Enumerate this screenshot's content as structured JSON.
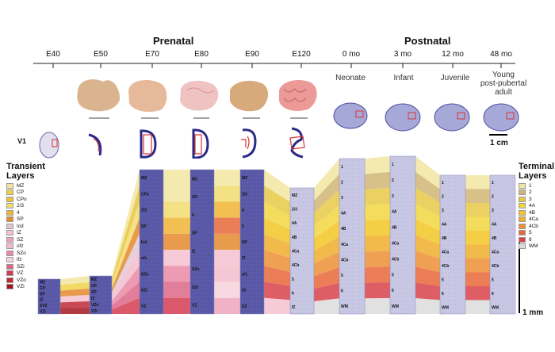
{
  "headers": {
    "prenatal": "Prenatal",
    "postnatal": "Postnatal"
  },
  "timepoints": [
    "E40",
    "E50",
    "E70",
    "E80",
    "E90",
    "E120",
    "0 mo",
    "3 mo",
    "12 mo",
    "48 mo"
  ],
  "stages": {
    "neonate": "Neonate",
    "infant": "Infant",
    "juvenile": "Juvenile",
    "adult": "Young\npost-pubertal\nadult"
  },
  "v1_label": "V1",
  "scale_cm": "1 cm",
  "scale_mm": "1 mm",
  "transient": {
    "title": "Transient\nLayers",
    "items": [
      {
        "label": "MZ",
        "color": "#f2e6a1"
      },
      {
        "label": "CP",
        "color": "#eed24a"
      },
      {
        "label": "CPo",
        "color": "#e8c53b"
      },
      {
        "label": "2/3",
        "color": "#f2dc6e"
      },
      {
        "label": "4",
        "color": "#f0b534"
      },
      {
        "label": "SP",
        "color": "#e58a2e"
      },
      {
        "label": "Icd",
        "color": "#e3c7d5"
      },
      {
        "label": "IZ",
        "color": "#f4c1cf"
      },
      {
        "label": "SZ",
        "color": "#efa4bb"
      },
      {
        "label": "ofz",
        "color": "#f3bccb"
      },
      {
        "label": "SZo",
        "color": "#e98aa6"
      },
      {
        "label": "ifz",
        "color": "#f6d3dc"
      },
      {
        "label": "SZi",
        "color": "#dd6688"
      },
      {
        "label": "VZ",
        "color": "#d43c50"
      },
      {
        "label": "VZo",
        "color": "#c12a36"
      },
      {
        "label": "VZi",
        "color": "#a3161f"
      }
    ]
  },
  "terminal": {
    "title": "Terminal\nLayers",
    "items": [
      {
        "label": "1",
        "color": "#f2e6a1"
      },
      {
        "label": "2",
        "color": "#d1b574"
      },
      {
        "label": "3",
        "color": "#e6c945"
      },
      {
        "label": "4A",
        "color": "#f2d640"
      },
      {
        "label": "4B",
        "color": "#f2c525"
      },
      {
        "label": "4Ca",
        "color": "#f0ae2c"
      },
      {
        "label": "4Cb",
        "color": "#ed8f34"
      },
      {
        "label": "5",
        "color": "#e8673a"
      },
      {
        "label": "6",
        "color": "#d9424a"
      },
      {
        "label": "WM",
        "color": "#dcdcdc"
      }
    ]
  },
  "slice_labels": {
    "e40": [
      "MZ",
      "CP",
      "SP",
      "IZ",
      "SVZ",
      "VZi"
    ],
    "e50": [
      "MZ",
      "CP",
      "SP",
      "IZ",
      "VZo",
      "VZi"
    ],
    "e70": [
      "MZ",
      "CPo",
      "2/3",
      "SP",
      "Icd",
      "ofz",
      "SZo",
      "SZi",
      "VZ"
    ],
    "e80": [
      "MZ",
      "2/3",
      "4",
      "SP",
      "IZ",
      "SZo",
      "SZi",
      "VZ"
    ],
    "e90": [
      "MZ",
      "2/3",
      "4",
      "5",
      "SP",
      "IZ",
      "ofz",
      "ifz",
      "SZ"
    ],
    "e120": [
      "MZ",
      "2/3",
      "4A",
      "4B",
      "4Ca",
      "4Cb",
      "5",
      "6",
      "IZ"
    ],
    "m0": [
      "1",
      "2",
      "3",
      "4A",
      "4B",
      "4Ca",
      "4Cb",
      "5",
      "6",
      "WM"
    ],
    "m3": [
      "1",
      "2",
      "3",
      "4A",
      "4B",
      "4Ca",
      "4Cb",
      "5",
      "6",
      "WM"
    ],
    "m12": [
      "1",
      "2",
      "3",
      "4A",
      "4B",
      "4Ca",
      "4Cb",
      "5",
      "6",
      "WM"
    ],
    "m48": [
      "1",
      "2",
      "3",
      "4A",
      "4B",
      "4Ca",
      "4Cb",
      "5",
      "6",
      "WM"
    ]
  }
}
